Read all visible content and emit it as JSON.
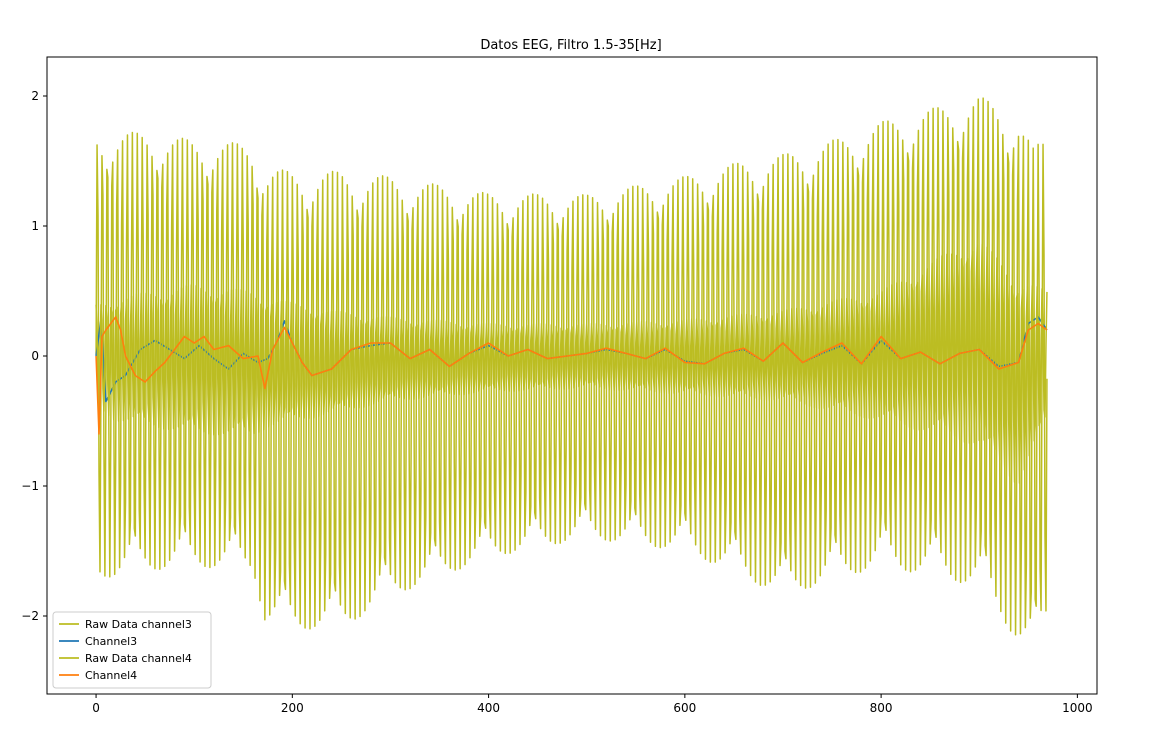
{
  "chart_data": {
    "type": "line",
    "title": "Datos EEG, Filtro 1.5-35[Hz]",
    "xlabel": "",
    "ylabel": "",
    "xlim": [
      -50,
      1020
    ],
    "ylim": [
      -2.6,
      2.3
    ],
    "xticks": [
      0,
      200,
      400,
      600,
      800,
      1000
    ],
    "yticks": [
      -2,
      -1,
      0,
      1,
      2
    ],
    "xtick_labels": [
      "0",
      "200",
      "400",
      "600",
      "800",
      "1000"
    ],
    "ytick_labels": [
      "−2",
      "−1",
      "0",
      "1",
      "2"
    ],
    "grid": false,
    "legend_position": "lower-left",
    "n_points": 970,
    "series": [
      {
        "name": "Raw Data channel3",
        "color": "#bcbd22",
        "kind": "oscillation",
        "period": 5.1,
        "envelope_x": [
          0,
          20,
          50,
          100,
          160,
          172,
          200,
          250,
          300,
          400,
          500,
          600,
          660,
          700,
          760,
          800,
          860,
          900,
          940,
          955,
          969
        ],
        "envelope_upper": [
          1.72,
          1.72,
          1.72,
          1.66,
          1.63,
          1.45,
          1.42,
          1.42,
          1.38,
          1.25,
          1.24,
          1.38,
          1.5,
          1.55,
          1.68,
          1.8,
          1.92,
          2.0,
          1.85,
          1.6,
          1.7
        ],
        "envelope_lower": [
          -1.7,
          -1.7,
          -1.65,
          -1.62,
          -1.65,
          -2.05,
          -2.1,
          -2.1,
          -1.85,
          -1.55,
          -1.4,
          -1.5,
          -1.7,
          -1.85,
          -1.7,
          -1.62,
          -1.7,
          -1.78,
          -2.2,
          -2.3,
          -2.05
        ]
      },
      {
        "name": "Channel3",
        "color": "#1f77b4",
        "x": [
          0,
          5,
          10,
          20,
          30,
          45,
          60,
          75,
          90,
          105,
          120,
          135,
          150,
          165,
          175,
          185,
          192,
          200,
          210,
          220,
          240,
          260,
          280,
          300,
          320,
          340,
          360,
          380,
          400,
          420,
          440,
          460,
          480,
          500,
          520,
          540,
          560,
          580,
          600,
          620,
          640,
          660,
          680,
          700,
          720,
          740,
          760,
          780,
          800,
          820,
          840,
          860,
          880,
          900,
          920,
          940,
          950,
          960,
          969
        ],
        "values": [
          0.0,
          0.28,
          -0.35,
          -0.2,
          -0.15,
          0.05,
          0.12,
          0.05,
          -0.02,
          0.08,
          -0.02,
          -0.1,
          0.02,
          -0.05,
          -0.02,
          0.12,
          0.27,
          0.1,
          -0.05,
          -0.15,
          -0.1,
          0.05,
          0.08,
          0.1,
          -0.02,
          0.05,
          -0.08,
          0.02,
          0.08,
          0.0,
          0.05,
          -0.02,
          0.0,
          0.02,
          0.05,
          0.02,
          -0.02,
          0.05,
          -0.04,
          -0.06,
          0.02,
          0.05,
          -0.04,
          0.1,
          -0.05,
          0.02,
          0.08,
          -0.06,
          0.12,
          -0.02,
          0.03,
          -0.06,
          0.02,
          0.05,
          -0.08,
          -0.05,
          0.25,
          0.3,
          0.2
        ]
      },
      {
        "name": "Raw Data channel4",
        "color": "#bcbd22",
        "kind": "oscillation",
        "period": 5.1,
        "envelope_x": [
          0,
          20,
          100,
          160,
          175,
          240,
          300,
          400,
          500,
          600,
          700,
          800,
          880,
          900,
          940,
          969
        ],
        "envelope_upper": [
          0.4,
          0.45,
          0.55,
          0.5,
          0.45,
          0.35,
          0.3,
          0.25,
          0.25,
          0.28,
          0.35,
          0.5,
          0.85,
          0.9,
          0.6,
          0.5
        ],
        "envelope_lower": [
          -0.4,
          -0.5,
          -0.6,
          -0.62,
          -0.55,
          -0.45,
          -0.35,
          -0.28,
          -0.25,
          -0.3,
          -0.35,
          -0.5,
          -0.65,
          -0.7,
          -1.0,
          -0.5
        ]
      },
      {
        "name": "Channel4",
        "color": "#ff7f0e",
        "x": [
          0,
          3,
          6,
          10,
          15,
          20,
          25,
          30,
          40,
          50,
          60,
          70,
          80,
          90,
          100,
          110,
          120,
          135,
          150,
          165,
          172,
          180,
          192,
          200,
          210,
          220,
          240,
          260,
          280,
          300,
          320,
          340,
          360,
          380,
          400,
          420,
          440,
          460,
          480,
          500,
          520,
          540,
          560,
          580,
          600,
          620,
          640,
          660,
          680,
          700,
          720,
          740,
          760,
          780,
          800,
          820,
          840,
          860,
          880,
          900,
          920,
          940,
          950,
          960,
          969
        ],
        "values": [
          0.0,
          -0.6,
          0.15,
          0.2,
          0.25,
          0.3,
          0.2,
          0.0,
          -0.15,
          -0.2,
          -0.12,
          -0.05,
          0.05,
          0.15,
          0.1,
          0.15,
          0.05,
          0.08,
          -0.02,
          0.0,
          -0.25,
          0.05,
          0.22,
          0.1,
          -0.05,
          -0.15,
          -0.1,
          0.05,
          0.1,
          0.1,
          -0.02,
          0.05,
          -0.08,
          0.02,
          0.1,
          0.0,
          0.05,
          -0.02,
          0.0,
          0.02,
          0.06,
          0.02,
          -0.02,
          0.06,
          -0.05,
          -0.06,
          0.02,
          0.06,
          -0.04,
          0.1,
          -0.05,
          0.03,
          0.1,
          -0.06,
          0.15,
          -0.02,
          0.03,
          -0.06,
          0.02,
          0.05,
          -0.1,
          -0.05,
          0.2,
          0.25,
          0.2
        ]
      }
    ]
  }
}
